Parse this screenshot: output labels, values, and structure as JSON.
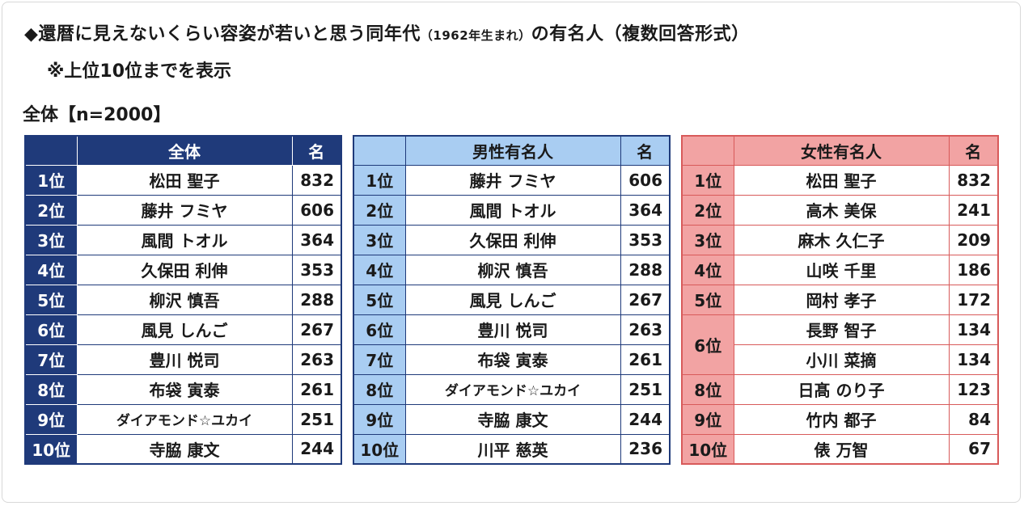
{
  "title": {
    "line1_main": "◆還暦に見えないくらい容姿が若いと思う同年代",
    "line1_note": "（1962年生まれ）",
    "line1_tail": "の有名人（複数回答形式）",
    "line2": "※上位10位までを表示"
  },
  "subtitle": "全体【n=2000】",
  "tables": {
    "overall": {
      "header_name": "全体",
      "header_count": "名",
      "rows": [
        {
          "rank": "1位",
          "name": "松田 聖子",
          "count": "832"
        },
        {
          "rank": "2位",
          "name": "藤井 フミヤ",
          "count": "606"
        },
        {
          "rank": "3位",
          "name": "風間 トオル",
          "count": "364"
        },
        {
          "rank": "4位",
          "name": "久保田 利伸",
          "count": "353"
        },
        {
          "rank": "5位",
          "name": "柳沢 慎吾",
          "count": "288"
        },
        {
          "rank": "6位",
          "name": "風見 しんご",
          "count": "267"
        },
        {
          "rank": "7位",
          "name": "豊川 悦司",
          "count": "263"
        },
        {
          "rank": "8位",
          "name": "布袋 寅泰",
          "count": "261"
        },
        {
          "rank": "9位",
          "name": "ダイアモンド☆ユカイ",
          "count": "251"
        },
        {
          "rank": "10位",
          "name": "寺脇 康文",
          "count": "244"
        }
      ]
    },
    "male": {
      "header_name": "男性有名人",
      "header_count": "名",
      "rows": [
        {
          "rank": "1位",
          "name": "藤井 フミヤ",
          "count": "606"
        },
        {
          "rank": "2位",
          "name": "風間 トオル",
          "count": "364"
        },
        {
          "rank": "3位",
          "name": "久保田 利伸",
          "count": "353"
        },
        {
          "rank": "4位",
          "name": "柳沢 慎吾",
          "count": "288"
        },
        {
          "rank": "5位",
          "name": "風見 しんご",
          "count": "267"
        },
        {
          "rank": "6位",
          "name": "豊川 悦司",
          "count": "263"
        },
        {
          "rank": "7位",
          "name": "布袋 寅泰",
          "count": "261"
        },
        {
          "rank": "8位",
          "name": "ダイアモンド☆ユカイ",
          "count": "251"
        },
        {
          "rank": "9位",
          "name": "寺脇 康文",
          "count": "244"
        },
        {
          "rank": "10位",
          "name": "川平 慈英",
          "count": "236"
        }
      ]
    },
    "female": {
      "header_name": "女性有名人",
      "header_count": "名",
      "rows": [
        {
          "rank": "1位",
          "name": "松田 聖子",
          "count": "832"
        },
        {
          "rank": "2位",
          "name": "高木 美保",
          "count": "241"
        },
        {
          "rank": "3位",
          "name": "麻木 久仁子",
          "count": "209"
        },
        {
          "rank": "4位",
          "name": "山咲 千里",
          "count": "186"
        },
        {
          "rank": "5位",
          "name": "岡村 孝子",
          "count": "172"
        },
        {
          "rank": "6位",
          "name": "長野 智子",
          "count": "134"
        },
        {
          "rank": "",
          "name": "小川 菜摘",
          "count": "134"
        },
        {
          "rank": "8位",
          "name": "日髙 のり子",
          "count": "123"
        },
        {
          "rank": "9位",
          "name": "竹内 都子",
          "count": "84"
        },
        {
          "rank": "10位",
          "name": "俵 万智",
          "count": "67"
        }
      ]
    }
  },
  "colors": {
    "overall_header": "#1f3a7a",
    "male_header": "#a9cdf2",
    "female_header": "#f2a3a3",
    "female_border": "#d85a5a"
  }
}
